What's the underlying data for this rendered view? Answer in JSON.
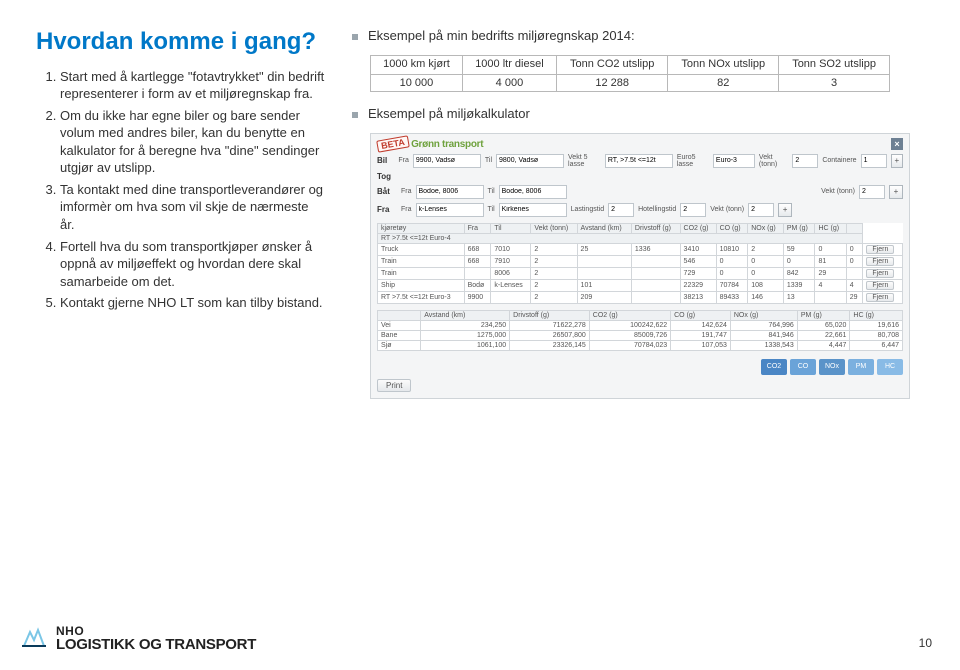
{
  "title": "Hvordan komme i gang?",
  "title_color": "#0078c8",
  "steps": [
    "Start med å kartlegge \"fotavtrykket\" din bedrift representerer i form av et miljøregnskap fra.",
    "Om du ikke har egne biler og bare sender volum med andres biler, kan du benytte en kalkulator for å beregne hva \"dine\" sendinger utgjør av utslipp.",
    "Ta kontakt med dine transportleverandører og imformèr om hva som vil skje de nærmeste år.",
    "Fortell hva du som transportkjøper ønsker å oppnå av miljøeffekt og hvordan dere skal samarbeide om det.",
    "Kontakt gjerne NHO LT som kan tilby bistand."
  ],
  "bullets": {
    "example_table": "Eksempel på  min bedrifts miljøregnskap 2014:",
    "example_calc": "Eksempel på miljøkalkulator"
  },
  "table": {
    "headers": [
      "1000 km kjørt",
      "1000 ltr diesel",
      "Tonn CO2 utslipp",
      "Tonn NOx utslipp",
      "Tonn SO2 utslipp"
    ],
    "row": [
      "10 000",
      "4 000",
      "12 288",
      "82",
      "3"
    ]
  },
  "calc": {
    "brand": "Grønn transport",
    "beta": "BETA",
    "rows": {
      "bil": {
        "label": "Bil",
        "fra_lbl": "Fra",
        "fra": "9900, Vadsø",
        "til_lbl": "Til",
        "til": "9800, Vadsø",
        "vekt5_lbl": "Vekt 5 lasse",
        "vekt5": "RT, >7.5t <=12t",
        "euro_lbl": "Euro5 lasse",
        "euro": "Euro-3",
        "vekt_tonn_lbl": "Vekt (tonn)",
        "vekt_tonn": "2",
        "container_lbl": "Containere",
        "container": "1"
      },
      "tog": {
        "label": "Tog"
      },
      "bat": {
        "label": "Båt",
        "fra": "Bodoe, 8006",
        "til": "Bodoe, 8006",
        "vekt_tonn_lbl": "Vekt (tonn)",
        "vekt_tonn": "2"
      },
      "fra": {
        "label": "Fra",
        "fra": "k-Lenses",
        "til": "Kirkenes",
        "last_lbl": "Lastingstid",
        "last": "2",
        "hotel_lbl": "Hotellingstid",
        "hotel": "2",
        "vekt_tonn_lbl": "Vekt (tonn)",
        "vekt_tonn": "2"
      }
    },
    "grid": {
      "headers": [
        "kjøretøy",
        "Fra",
        "Til",
        "Vekt (tonn)",
        "Avstand (km)",
        "Drivstoff (g)",
        "CO2 (g)",
        "CO (g)",
        "NOx (g)",
        "PM (g)",
        "HC (g)",
        ""
      ],
      "subhead": "RT >7.5t <=12t Euro-4",
      "rows": [
        [
          "Truck",
          "668",
          "7010",
          "2",
          "25",
          "1336",
          "3410",
          "10810",
          "2",
          "59",
          "0",
          "0"
        ],
        [
          "Train",
          "668",
          "7910",
          "2",
          "",
          "",
          "546",
          "0",
          "0",
          "0",
          "81",
          "0"
        ],
        [
          "Train",
          "",
          "8006",
          "2",
          "",
          "",
          "729",
          "0",
          "0",
          "842",
          "29",
          ""
        ],
        [
          "Ship",
          "Bodø",
          "k-Lenses",
          "2",
          "101",
          "",
          "22329",
          "70784",
          "108",
          "1339",
          "4",
          "4"
        ],
        [
          "RT >7.5t <=12t Euro-3",
          "9900",
          "",
          "2",
          "209",
          "",
          "38213",
          "89433",
          "146",
          "13",
          "",
          "29"
        ]
      ],
      "fjern": "Fjern"
    },
    "grid2": {
      "headers": [
        "",
        "Avstand (km)",
        "Drivstoff (g)",
        "CO2 (g)",
        "CO (g)",
        "NOx (g)",
        "PM (g)",
        "HC (g)"
      ],
      "rows": [
        [
          "Vei",
          "234,250",
          "71622,278",
          "100242,622",
          "142,624",
          "764,996",
          "65,020",
          "19,616"
        ],
        [
          "Bane",
          "1275,000",
          "26507,800",
          "85009,726",
          "191,747",
          "841,946",
          "22,661",
          "80,708"
        ],
        [
          "Sjø",
          "1061,100",
          "23326,145",
          "70784,023",
          "107,053",
          "1338,543",
          "4,447",
          "6,447"
        ]
      ]
    },
    "gas": [
      "CO2",
      "CO",
      "NOx",
      "PM",
      "HC"
    ],
    "print": "Print"
  },
  "footer": {
    "nho": "NHO",
    "lt": "LOGISTIKK OG TRANSPORT",
    "page": "10"
  }
}
